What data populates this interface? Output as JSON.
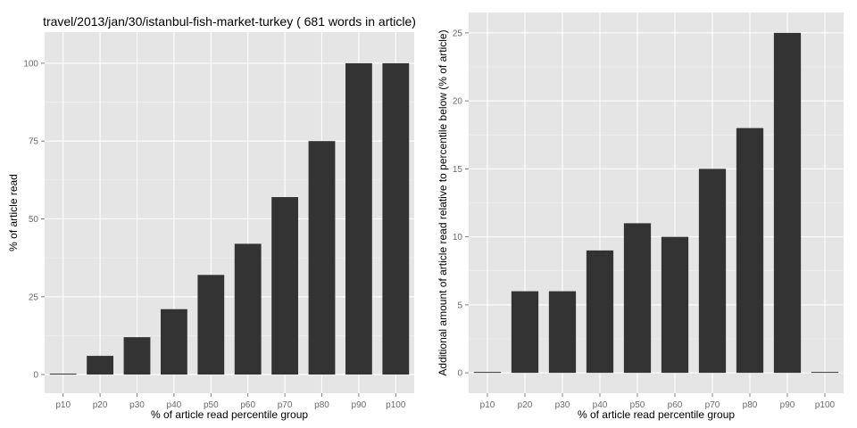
{
  "colors": {
    "panel": "#E5E5E5",
    "grid_major": "#FFFFFF",
    "grid_minor": "#F2F2F2",
    "bar": "#333333",
    "tick_text": "#6B6B6B"
  },
  "chart_data": [
    {
      "type": "bar",
      "title": "travel/2013/jan/30/istanbul-fish-market-turkey ( 681 words in article)",
      "xlabel": "% of article read percentile group",
      "ylabel": "% of article read",
      "categories": [
        "p10",
        "p20",
        "p30",
        "p40",
        "p50",
        "p60",
        "p70",
        "p80",
        "p90",
        "p100"
      ],
      "values": [
        0,
        6,
        12,
        21,
        32,
        42,
        57,
        75,
        100,
        100
      ],
      "ylim": [
        -6,
        110
      ],
      "yticks": [
        "0",
        "25",
        "50",
        "75",
        "100"
      ],
      "grid": true,
      "legend": "none"
    },
    {
      "type": "bar",
      "title": "",
      "xlabel": "% of article read percentile group",
      "ylabel": "Additional amount of article read relative to percentile below (% of article)",
      "categories": [
        "p10",
        "p20",
        "p30",
        "p40",
        "p50",
        "p60",
        "p70",
        "p80",
        "p90",
        "p100"
      ],
      "values": [
        0,
        6,
        6,
        9,
        11,
        10,
        15,
        18,
        25,
        0
      ],
      "ylim": [
        -1.5,
        26.5
      ],
      "yticks": [
        "0",
        "5",
        "10",
        "15",
        "20",
        "25"
      ],
      "grid": true,
      "legend": "none"
    }
  ]
}
